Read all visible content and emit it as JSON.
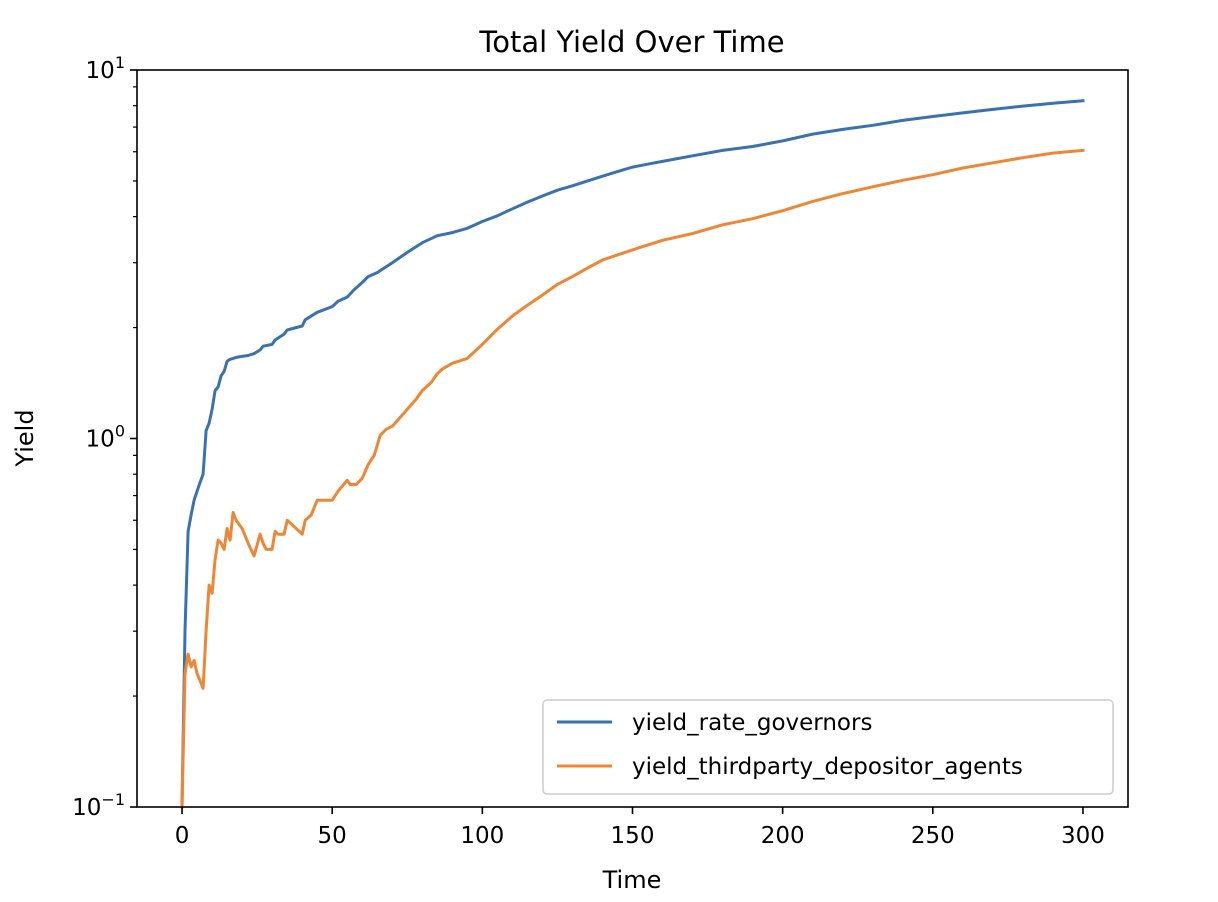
{
  "chart_data": {
    "type": "line",
    "title": "Total Yield Over Time",
    "xlabel": "Time",
    "ylabel": "Yield",
    "xlim": [
      -15,
      315
    ],
    "ylim": [
      0.1,
      10
    ],
    "yscale": "log",
    "xticks": [
      0,
      50,
      100,
      150,
      200,
      250,
      300
    ],
    "yticks": [
      {
        "value": 0.1,
        "base": "10",
        "exp": "−1"
      },
      {
        "value": 1,
        "base": "10",
        "exp": "0"
      },
      {
        "value": 10,
        "base": "10",
        "exp": "1"
      }
    ],
    "grid": false,
    "legend_position": "lower-right",
    "series": [
      {
        "name": "yield_rate_governors",
        "color": "#3a72b0",
        "x": [
          0,
          1,
          2,
          3,
          4,
          5,
          6,
          7,
          8,
          9,
          10,
          11,
          12,
          13,
          14,
          15,
          16,
          17,
          18,
          20,
          22,
          24,
          26,
          27,
          30,
          31,
          34,
          35,
          40,
          41,
          45,
          50,
          52,
          55,
          57,
          60,
          62,
          65,
          70,
          75,
          80,
          85,
          90,
          95,
          100,
          105,
          110,
          115,
          120,
          125,
          130,
          135,
          140,
          145,
          150,
          155,
          160,
          170,
          180,
          190,
          200,
          210,
          220,
          230,
          240,
          250,
          260,
          270,
          280,
          290,
          300
        ],
        "values": [
          0.1,
          0.3,
          0.56,
          0.62,
          0.68,
          0.72,
          0.76,
          0.8,
          1.05,
          1.1,
          1.2,
          1.35,
          1.38,
          1.48,
          1.52,
          1.62,
          1.64,
          1.65,
          1.66,
          1.67,
          1.68,
          1.7,
          1.74,
          1.78,
          1.8,
          1.85,
          1.92,
          1.97,
          2.02,
          2.1,
          2.2,
          2.28,
          2.36,
          2.42,
          2.52,
          2.65,
          2.75,
          2.82,
          3.0,
          3.2,
          3.4,
          3.55,
          3.62,
          3.72,
          3.88,
          4.02,
          4.2,
          4.38,
          4.55,
          4.72,
          4.85,
          5.0,
          5.15,
          5.3,
          5.45,
          5.55,
          5.65,
          5.85,
          6.05,
          6.2,
          6.42,
          6.7,
          6.9,
          7.08,
          7.3,
          7.48,
          7.65,
          7.82,
          7.98,
          8.12,
          8.25
        ]
      },
      {
        "name": "yield_thirdparty_depositor_agents",
        "color": "#ef8636",
        "x": [
          0,
          1,
          2,
          3,
          4,
          5,
          6,
          7,
          8,
          9,
          10,
          11,
          12,
          13,
          14,
          15,
          16,
          17,
          18,
          20,
          22,
          24,
          26,
          27,
          28,
          30,
          31,
          32,
          34,
          35,
          37,
          40,
          41,
          43,
          45,
          50,
          52,
          55,
          56,
          58,
          60,
          62,
          64,
          66,
          68,
          70,
          73,
          75,
          78,
          80,
          83,
          85,
          87,
          90,
          95,
          100,
          105,
          110,
          115,
          120,
          125,
          130,
          135,
          140,
          145,
          150,
          160,
          170,
          180,
          190,
          200,
          210,
          220,
          230,
          240,
          250,
          260,
          270,
          280,
          290,
          300
        ],
        "values": [
          0.1,
          0.23,
          0.26,
          0.24,
          0.25,
          0.23,
          0.22,
          0.21,
          0.3,
          0.4,
          0.38,
          0.47,
          0.53,
          0.52,
          0.5,
          0.57,
          0.53,
          0.63,
          0.6,
          0.57,
          0.52,
          0.48,
          0.55,
          0.52,
          0.5,
          0.5,
          0.56,
          0.55,
          0.55,
          0.6,
          0.58,
          0.55,
          0.6,
          0.62,
          0.68,
          0.68,
          0.72,
          0.77,
          0.75,
          0.75,
          0.78,
          0.85,
          0.9,
          1.02,
          1.06,
          1.08,
          1.15,
          1.2,
          1.28,
          1.35,
          1.42,
          1.5,
          1.55,
          1.6,
          1.65,
          1.8,
          1.98,
          2.15,
          2.3,
          2.45,
          2.62,
          2.75,
          2.9,
          3.05,
          3.15,
          3.25,
          3.45,
          3.6,
          3.8,
          3.95,
          4.15,
          4.4,
          4.62,
          4.82,
          5.02,
          5.2,
          5.42,
          5.6,
          5.78,
          5.95,
          6.05
        ]
      }
    ]
  }
}
